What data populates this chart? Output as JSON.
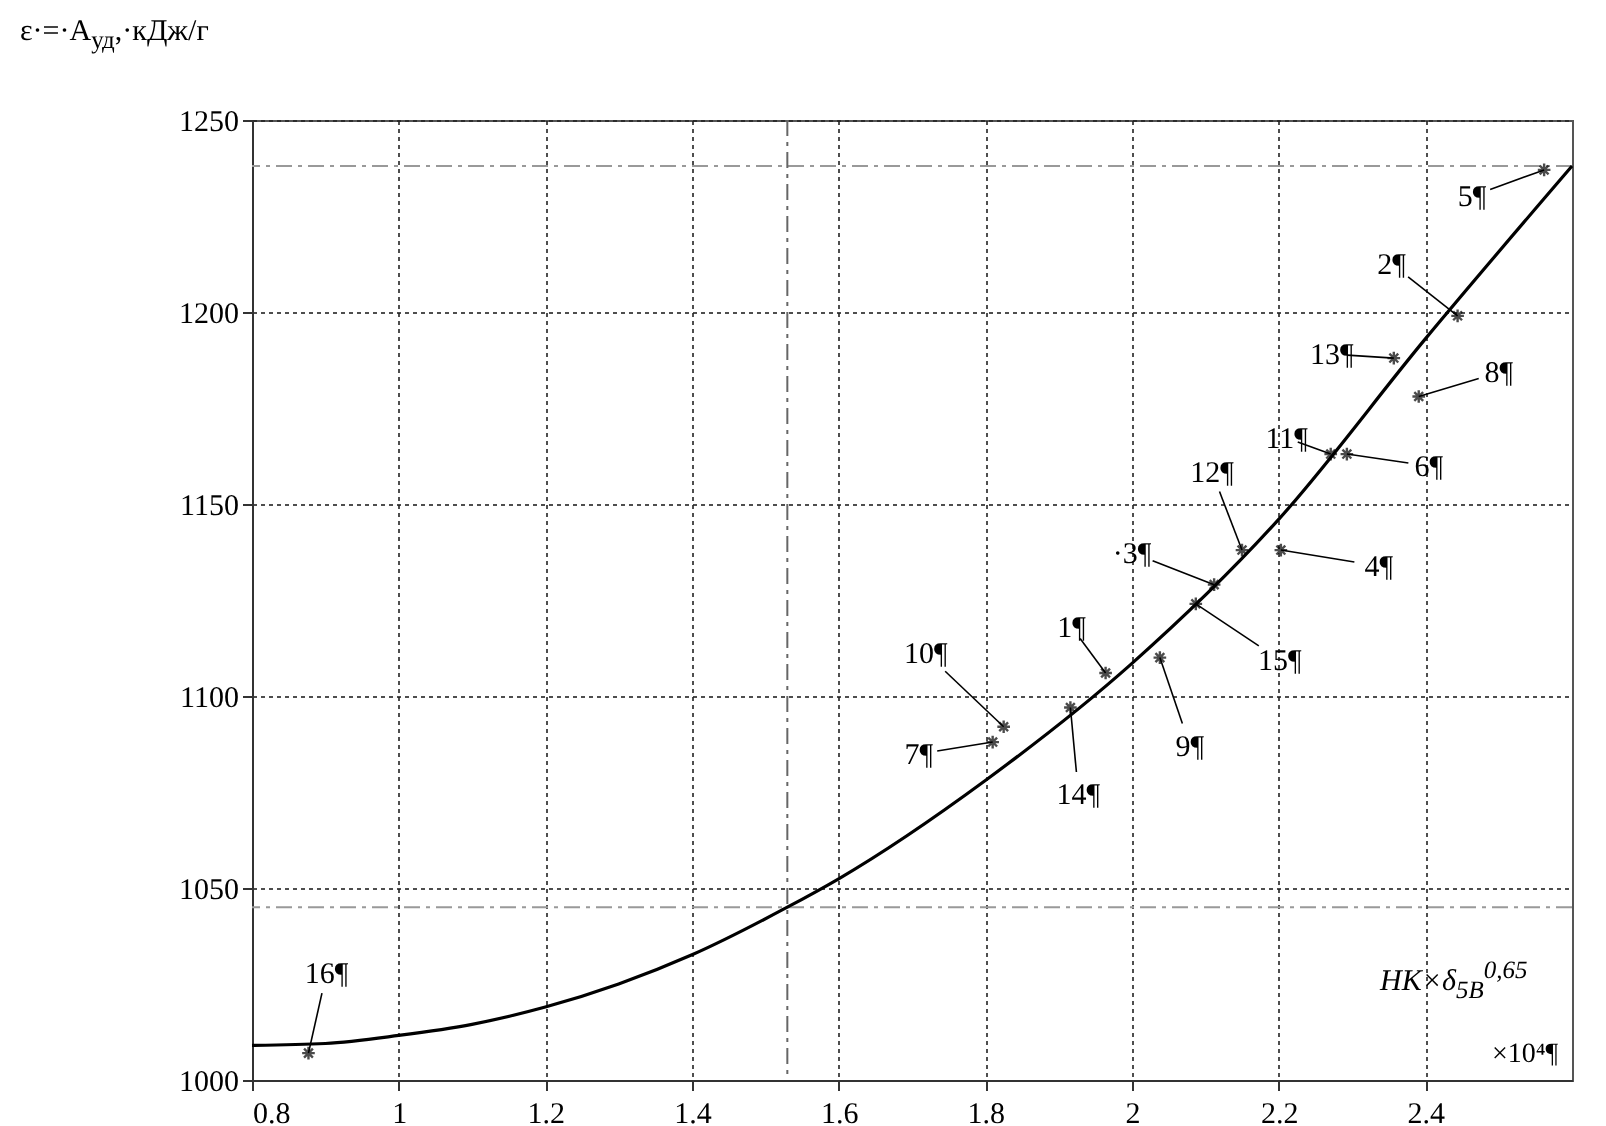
{
  "chart_data": {
    "type": "scatter",
    "ylabel": "ε·=·A$_{уд}$,·кДж/г",
    "xlabel": "HK×δ$_{5B}$$^{0,65}$",
    "xlim": [
      0.8,
      2.6
    ],
    "xticks": [
      0.8,
      1,
      1.2,
      1.4,
      1.6,
      1.8,
      2,
      2.2,
      2.4
    ],
    "ylim": [
      1000,
      1250
    ],
    "yticks": [
      1000,
      1050,
      1100,
      1150,
      1200,
      1250
    ],
    "grid": true,
    "series": [
      {
        "marker": "cross",
        "color": "#000000",
        "x": [
          1.964,
          2.444,
          2.112,
          2.203,
          2.562,
          2.293,
          1.81,
          2.391,
          2.038,
          1.825,
          2.271,
          2.15,
          2.357,
          1.916,
          2.087,
          0.877
        ],
        "values": [
          1106,
          1199,
          1129,
          1138,
          1237,
          1163,
          1088,
          1178,
          1110,
          1092,
          1163,
          1138,
          1188,
          1097,
          1124,
          1007
        ]
      },
      {
        "type": "line",
        "marker": "none",
        "color": "#000000",
        "x": [
          0.8,
          0.9,
          1.0,
          1.1,
          1.2,
          1.3,
          1.4,
          1.53,
          1.6,
          1.8,
          2.0,
          2.2,
          2.4,
          2.6
        ],
        "values": [
          1009,
          1009.5,
          1011.6,
          1014.5,
          1019,
          1025,
          1032.6,
          1045,
          1052.4,
          1078,
          1108.5,
          1146,
          1193,
          1238
        ]
      }
    ],
    "ref_lines": [
      {
        "axis": "y",
        "value": 1238,
        "color": "#999999",
        "line_style": "dashed"
      },
      {
        "axis": "y",
        "value": 1045,
        "color": "#999999",
        "line_style": "dashed"
      },
      {
        "axis": "x",
        "value": 1.53,
        "color": "#666666",
        "line_style": "dashed"
      }
    ],
    "annotations": [
      {
        "text": "1¶",
        "x": 1.964,
        "y": 1106
      },
      {
        "text": "2¶",
        "x": 2.444,
        "y": 1199
      },
      {
        "text": "·3¶",
        "x": 2.112,
        "y": 1129
      },
      {
        "text": "4¶",
        "x": 2.203,
        "y": 1138
      },
      {
        "text": "5¶",
        "x": 2.562,
        "y": 1237
      },
      {
        "text": "6¶",
        "x": 2.293,
        "y": 1163
      },
      {
        "text": "7¶",
        "x": 1.81,
        "y": 1088
      },
      {
        "text": "8¶",
        "x": 2.391,
        "y": 1178
      },
      {
        "text": "9¶",
        "x": 2.038,
        "y": 1110
      },
      {
        "text": "10¶",
        "x": 1.825,
        "y": 1092
      },
      {
        "text": "11¶",
        "x": 2.271,
        "y": 1163
      },
      {
        "text": "12¶",
        "x": 2.15,
        "y": 1138
      },
      {
        "text": "13¶",
        "x": 2.357,
        "y": 1188
      },
      {
        "text": "14¶",
        "x": 1.916,
        "y": 1097
      },
      {
        "text": "15¶",
        "x": 2.087,
        "y": 1124
      },
      {
        "text": "16¶",
        "x": 0.877,
        "y": 1007
      },
      "×10⁴¶"
    ]
  }
}
